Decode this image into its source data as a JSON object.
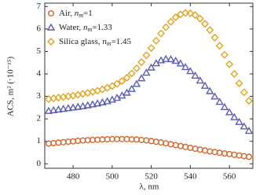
{
  "chart_data": {
    "type": "scatter",
    "xlabel": "λ, nm",
    "ylabel": "ACS, m² (·10⁻¹⁵)",
    "x": [
      467.5,
      470,
      472.5,
      475,
      477.5,
      480,
      482.5,
      485,
      487.5,
      490,
      492.5,
      495,
      497.5,
      500,
      502.5,
      505,
      507.5,
      510,
      512.5,
      515,
      517.5,
      520,
      522.5,
      525,
      527.5,
      530,
      532.5,
      535,
      537.5,
      540,
      542.5,
      545,
      547.5,
      550,
      552.5,
      555,
      557.5,
      560,
      562.5,
      565,
      567.5,
      570
    ],
    "series": [
      {
        "name": "Air, nm=1",
        "color": "#d4652b",
        "marker": "circle",
        "values": [
          0.9,
          0.92,
          0.94,
          0.96,
          0.98,
          1.0,
          1.02,
          1.04,
          1.05,
          1.06,
          1.07,
          1.08,
          1.09,
          1.1,
          1.1,
          1.1,
          1.1,
          1.09,
          1.08,
          1.06,
          1.04,
          1.01,
          0.98,
          0.95,
          0.91,
          0.87,
          0.83,
          0.79,
          0.75,
          0.71,
          0.67,
          0.63,
          0.59,
          0.55,
          0.52,
          0.49,
          0.46,
          0.43,
          0.4,
          0.37,
          0.34,
          0.31
        ]
      },
      {
        "name": "Water, nm=1.33",
        "color": "#5b5fae",
        "marker": "triangle",
        "values": [
          2.35,
          2.38,
          2.41,
          2.44,
          2.47,
          2.5,
          2.53,
          2.56,
          2.6,
          2.64,
          2.68,
          2.73,
          2.78,
          2.85,
          2.93,
          3.03,
          3.16,
          3.33,
          3.55,
          3.8,
          4.05,
          4.28,
          4.47,
          4.6,
          4.66,
          4.65,
          4.58,
          4.46,
          4.3,
          4.12,
          3.92,
          3.7,
          3.47,
          3.23,
          2.99,
          2.75,
          2.52,
          2.29,
          2.07,
          1.86,
          1.66,
          1.46
        ]
      },
      {
        "name": "Silica glass, nm=1.45",
        "color": "#e2a324",
        "marker": "diamond",
        "values": [
          2.88,
          2.91,
          2.94,
          2.97,
          3.0,
          3.03,
          3.07,
          3.11,
          3.15,
          3.2,
          3.25,
          3.31,
          3.38,
          3.46,
          3.56,
          3.68,
          3.83,
          4.02,
          4.25,
          4.52,
          4.83,
          5.15,
          5.48,
          5.8,
          6.08,
          6.32,
          6.52,
          6.65,
          6.71,
          6.7,
          6.62,
          6.46,
          6.23,
          5.95,
          5.62,
          5.25,
          4.85,
          4.43,
          4.0,
          3.58,
          3.18,
          2.8
        ]
      }
    ],
    "xlim": [
      465.5,
      572
    ],
    "ylim": [
      -0.2,
      7.15
    ],
    "xticks": [
      480,
      500,
      520,
      540,
      560
    ],
    "yticks": [
      0,
      1,
      2,
      3,
      4,
      5,
      6,
      7
    ],
    "legend": "upper left",
    "grid": false
  }
}
